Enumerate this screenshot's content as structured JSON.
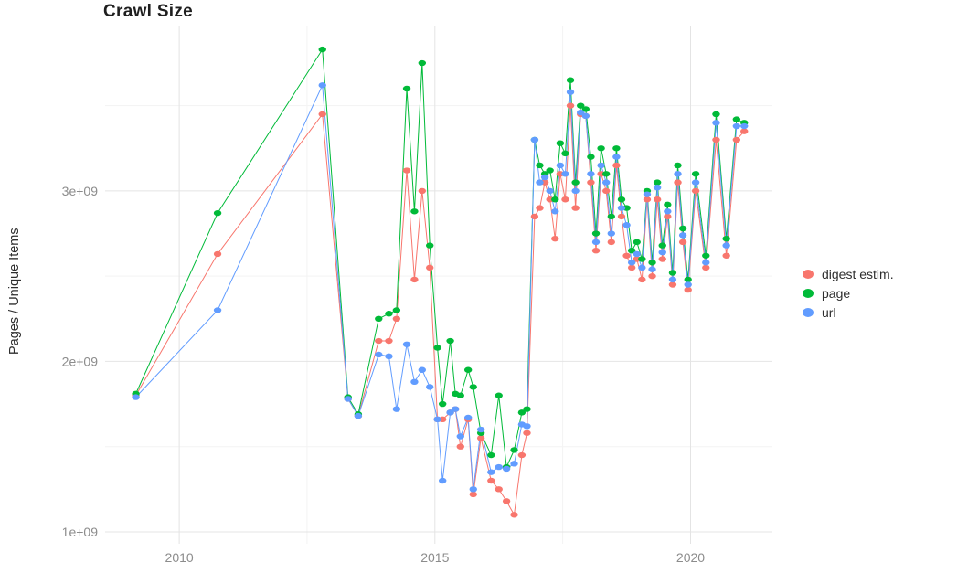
{
  "chart_data": {
    "type": "line",
    "title": "Crawl Size",
    "xlabel": "",
    "ylabel": "Pages / Unique Items",
    "y_unit": "1e+09 (values below are in billions)",
    "xlim": [
      2008.55,
      2021.6
    ],
    "ylim": [
      0.93,
      3.97
    ],
    "grid": "on",
    "legend_position": "right",
    "x_ticks": [
      {
        "value": 2010,
        "label": "2010"
      },
      {
        "value": 2015,
        "label": "2015"
      },
      {
        "value": 2020,
        "label": "2020"
      }
    ],
    "y_ticks": [
      {
        "value": 1,
        "label": "1e+09"
      },
      {
        "value": 2,
        "label": "2e+09"
      },
      {
        "value": 3,
        "label": "3e+09"
      }
    ],
    "x_minor": [
      2012.5,
      2017.5
    ],
    "y_minor": [
      1.5,
      2.5,
      3.5
    ],
    "x": [
      2009.15,
      2010.75,
      2012.8,
      2013.3,
      2013.5,
      2013.9,
      2014.1,
      2014.25,
      2014.45,
      2014.6,
      2014.75,
      2014.9,
      2015.05,
      2015.15,
      2015.3,
      2015.4,
      2015.5,
      2015.65,
      2015.75,
      2015.9,
      2016.1,
      2016.25,
      2016.4,
      2016.55,
      2016.7,
      2016.8,
      2016.95,
      2017.05,
      2017.15,
      2017.25,
      2017.35,
      2017.45,
      2017.55,
      2017.65,
      2017.75,
      2017.85,
      2017.95,
      2018.05,
      2018.15,
      2018.25,
      2018.35,
      2018.45,
      2018.55,
      2018.65,
      2018.75,
      2018.85,
      2018.95,
      2019.05,
      2019.15,
      2019.25,
      2019.35,
      2019.45,
      2019.55,
      2019.65,
      2019.75,
      2019.85,
      2019.95,
      2020.1,
      2020.3,
      2020.5,
      2020.7,
      2020.9,
      2021.05
    ],
    "series": [
      {
        "name": "digest estim.",
        "color": "#F8766D",
        "values": [
          1.8,
          2.63,
          3.45,
          1.78,
          1.68,
          2.12,
          2.12,
          2.25,
          3.12,
          2.48,
          3.0,
          2.55,
          1.66,
          1.66,
          1.7,
          1.72,
          1.5,
          1.66,
          1.22,
          1.55,
          1.3,
          1.25,
          1.18,
          1.1,
          1.45,
          1.58,
          2.85,
          2.9,
          3.05,
          2.95,
          2.72,
          3.1,
          2.95,
          3.5,
          2.9,
          3.45,
          3.44,
          3.05,
          2.65,
          3.1,
          3.0,
          2.7,
          3.15,
          2.85,
          2.62,
          2.55,
          2.6,
          2.48,
          2.95,
          2.5,
          2.95,
          2.6,
          2.85,
          2.45,
          3.05,
          2.7,
          2.42,
          3.0,
          2.55,
          3.3,
          2.62,
          3.3,
          3.35
        ]
      },
      {
        "name": "page",
        "color": "#00BA38",
        "values": [
          1.81,
          2.87,
          3.83,
          1.79,
          1.69,
          2.25,
          2.28,
          2.3,
          3.6,
          2.88,
          3.75,
          2.68,
          2.08,
          1.75,
          2.12,
          1.81,
          1.8,
          1.95,
          1.85,
          1.58,
          1.45,
          1.8,
          1.38,
          1.48,
          1.7,
          1.72,
          3.3,
          3.15,
          3.1,
          3.12,
          2.95,
          3.28,
          3.22,
          3.65,
          3.05,
          3.5,
          3.48,
          3.2,
          2.75,
          3.25,
          3.1,
          2.85,
          3.25,
          2.95,
          2.9,
          2.65,
          2.7,
          2.6,
          3.0,
          2.58,
          3.05,
          2.68,
          2.92,
          2.52,
          3.15,
          2.78,
          2.48,
          3.1,
          2.62,
          3.45,
          2.72,
          3.42,
          3.4
        ]
      },
      {
        "name": "url",
        "color": "#619CFF",
        "values": [
          1.79,
          2.3,
          3.62,
          1.78,
          1.68,
          2.04,
          2.03,
          1.72,
          2.1,
          1.88,
          1.95,
          1.85,
          1.66,
          1.3,
          1.7,
          1.72,
          1.56,
          1.67,
          1.25,
          1.6,
          1.35,
          1.38,
          1.37,
          1.4,
          1.63,
          1.62,
          3.3,
          3.05,
          3.08,
          3.0,
          2.88,
          3.15,
          3.1,
          3.58,
          3.0,
          3.46,
          3.44,
          3.1,
          2.7,
          3.15,
          3.05,
          2.75,
          3.2,
          2.9,
          2.8,
          2.58,
          2.63,
          2.55,
          2.98,
          2.54,
          3.02,
          2.64,
          2.88,
          2.48,
          3.1,
          2.74,
          2.45,
          3.05,
          2.58,
          3.4,
          2.68,
          3.38,
          3.38
        ]
      }
    ],
    "style": {
      "background": "#ffffff",
      "grid_major_color": "#e4e4e4",
      "grid_minor_color": "#f3f3f3",
      "tick_label_color": "#8c8c8c",
      "title_color": "#1f1f1f"
    }
  }
}
